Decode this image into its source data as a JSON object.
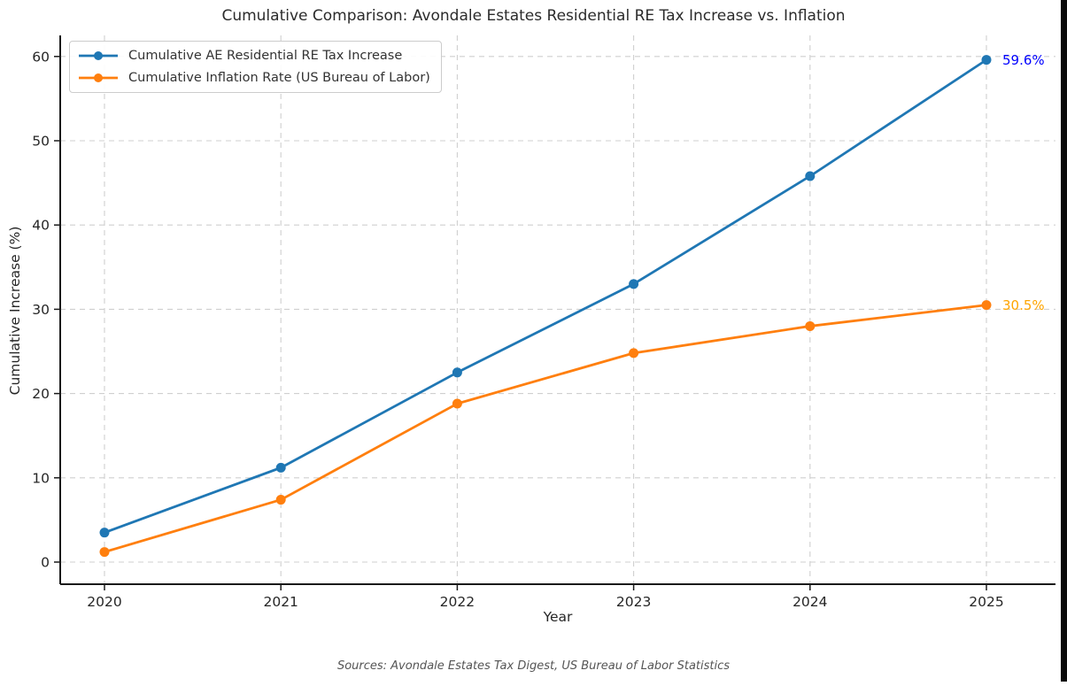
{
  "chart_data": {
    "type": "line",
    "title": "Cumulative Comparison: Avondale Estates Residential RE Tax Increase vs. Inflation",
    "xlabel": "Year",
    "ylabel": "Cumulative Increase (%)",
    "x": [
      2020,
      2021,
      2022,
      2023,
      2024,
      2025
    ],
    "yticks": [
      0,
      10,
      20,
      30,
      40,
      50,
      60
    ],
    "ylim": [
      -2.5,
      62.8
    ],
    "grid": true,
    "grid_style": "dashed",
    "legend_position": "upper-left",
    "series": [
      {
        "name": "Cumulative AE Residential RE Tax Increase",
        "color": "#1f77b4",
        "marker": "circle",
        "values": [
          3.5,
          11.2,
          22.5,
          33.0,
          45.8,
          59.6
        ]
      },
      {
        "name": "Cumulative Inflation Rate (US Bureau of Labor)",
        "color": "#ff7f0e",
        "marker": "circle",
        "values": [
          1.2,
          7.4,
          18.8,
          24.8,
          28.0,
          30.5
        ]
      }
    ],
    "annotations": [
      {
        "text": "59.6%",
        "color": "#0000ff",
        "x": 2025,
        "y": 59.6
      },
      {
        "text": "30.5%",
        "color": "#ffa500",
        "x": 2025,
        "y": 30.5
      }
    ],
    "footer": "Sources: Avondale Estates Tax Digest, US Bureau of Labor Statistics",
    "axis_color": "#1a1a1a",
    "grid_color": "#cfcfcf"
  }
}
